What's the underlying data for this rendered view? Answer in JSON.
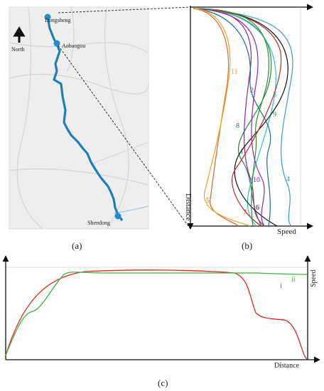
{
  "map": {
    "north_label": "North",
    "stations": [
      {
        "name": "Dongsheng"
      },
      {
        "name": "Aobaogou"
      },
      {
        "name": "Shendong"
      }
    ],
    "route_color": "#1f7fb8"
  },
  "panel_labels": {
    "a": "(a)",
    "b": "(b)",
    "c": "(c)"
  },
  "chart_data": [
    {
      "type": "line",
      "panel": "b",
      "xlabel": "Speed",
      "ylabel": "Distance",
      "series": [
        {
          "name": "1",
          "color": "#1e8a3a"
        },
        {
          "name": "2",
          "color": "#9b1fa3"
        },
        {
          "name": "3",
          "color": "#2bc2c9"
        },
        {
          "name": "4",
          "color": "#3a9ad0"
        },
        {
          "name": "5",
          "color": "#e3661c"
        },
        {
          "name": "6",
          "color": "#111111"
        },
        {
          "name": "7",
          "color": "#c8281f"
        },
        {
          "name": "8",
          "color": "#1a6f8a"
        },
        {
          "name": "9",
          "color": "#2f8f2f"
        },
        {
          "name": "10",
          "color": "#8a2ba6"
        },
        {
          "name": "11",
          "color": "#e6a52a"
        }
      ]
    },
    {
      "type": "line",
      "panel": "c",
      "xlabel": "Distance",
      "ylabel": "Speed",
      "series": [
        {
          "name": "i",
          "color": "#e0271c"
        },
        {
          "name": "ii",
          "color": "#3fb33f"
        }
      ]
    }
  ]
}
